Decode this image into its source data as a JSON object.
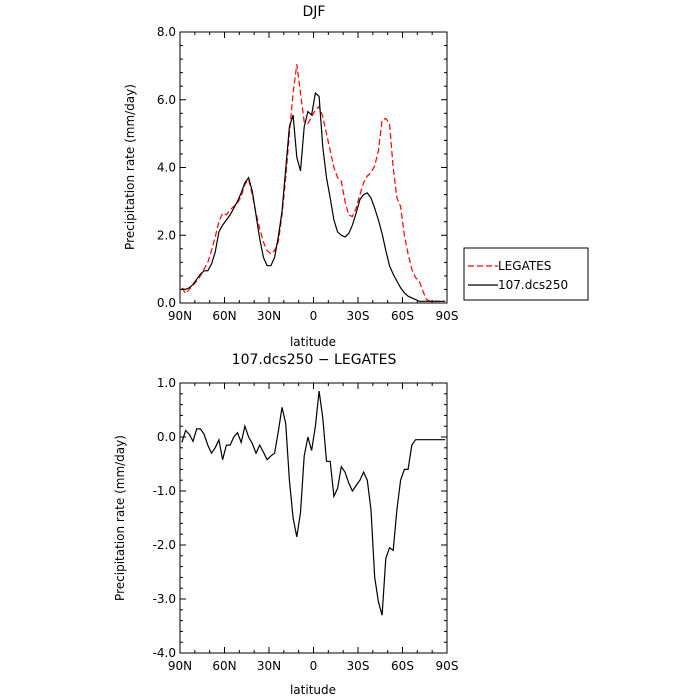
{
  "chart_data": [
    {
      "type": "line",
      "title": "DJF",
      "xlabel": "latitude",
      "ylabel": "Precipitation rate (mm/day)",
      "xlim": [
        -90,
        90
      ],
      "ylim": [
        0,
        8
      ],
      "xticks": [
        "90N",
        "60N",
        "30N",
        "0",
        "30S",
        "60S",
        "90S"
      ],
      "yticks": [
        "0.0",
        "2.0",
        "4.0",
        "6.0",
        "8.0"
      ],
      "legend_position": "right",
      "x": [
        -88.75,
        -86.25,
        -83.75,
        -81.25,
        -78.75,
        -76.25,
        -73.75,
        -71.25,
        -68.75,
        -66.25,
        -63.75,
        -61.25,
        -58.75,
        -56.25,
        -53.75,
        -51.25,
        -48.75,
        -46.25,
        -43.75,
        -41.25,
        -38.75,
        -36.25,
        -33.75,
        -31.25,
        -28.75,
        -26.25,
        -23.75,
        -21.25,
        -18.75,
        -16.25,
        -13.75,
        -11.25,
        -8.75,
        -6.25,
        -3.75,
        -1.25,
        1.25,
        3.75,
        6.25,
        8.75,
        11.25,
        13.75,
        16.25,
        18.75,
        21.25,
        23.75,
        26.25,
        28.75,
        31.25,
        33.75,
        36.25,
        38.75,
        41.25,
        43.75,
        46.25,
        48.75,
        51.25,
        53.75,
        56.25,
        58.75,
        61.25,
        63.75,
        66.25,
        68.75,
        71.25,
        73.75,
        76.25,
        78.75,
        81.25,
        83.75,
        86.25,
        88.75
      ],
      "series": [
        {
          "name": "LEGATES",
          "color": "#ff0000",
          "dash": "dashed",
          "values": [
            0.45,
            0.28,
            0.4,
            0.52,
            0.65,
            0.8,
            1.0,
            1.2,
            1.55,
            1.95,
            2.4,
            2.65,
            2.6,
            2.75,
            2.85,
            2.95,
            3.15,
            3.5,
            3.65,
            3.2,
            2.65,
            2.2,
            1.8,
            1.55,
            1.45,
            1.55,
            1.8,
            2.6,
            3.7,
            5.0,
            6.2,
            7.05,
            6.2,
            5.35,
            5.3,
            5.5,
            5.7,
            5.8,
            5.5,
            5.0,
            4.5,
            4.0,
            3.7,
            3.6,
            3.0,
            2.6,
            2.55,
            2.8,
            3.2,
            3.55,
            3.75,
            3.85,
            4.05,
            4.5,
            5.4,
            5.45,
            5.3,
            4.0,
            3.1,
            2.85,
            2.0,
            1.45,
            1.0,
            0.75,
            0.65,
            0.35,
            0.1,
            0.05,
            0.05,
            0.05,
            0.05,
            0.05
          ]
        },
        {
          "name": "107.dcs250",
          "color": "#000000",
          "dash": "solid",
          "values": [
            0.42,
            0.4,
            0.45,
            0.55,
            0.7,
            0.85,
            0.95,
            0.95,
            1.15,
            1.5,
            2.1,
            2.3,
            2.45,
            2.6,
            2.8,
            3.0,
            3.25,
            3.55,
            3.7,
            3.3,
            2.6,
            1.9,
            1.35,
            1.1,
            1.1,
            1.35,
            1.95,
            2.7,
            3.95,
            5.2,
            5.55,
            4.3,
            3.9,
            5.2,
            5.65,
            5.55,
            6.2,
            6.1,
            4.6,
            3.7,
            3.1,
            2.45,
            2.1,
            2.0,
            1.95,
            2.05,
            2.3,
            2.65,
            3.05,
            3.2,
            3.25,
            3.1,
            2.8,
            2.45,
            2.05,
            1.55,
            1.1,
            0.85,
            0.65,
            0.45,
            0.3,
            0.2,
            0.15,
            0.1,
            0.05,
            0.05,
            0.05,
            0.05,
            0.05,
            0.05,
            0.05,
            0.05
          ]
        }
      ]
    },
    {
      "type": "line",
      "title": "107.dcs250 − LEGATES",
      "xlabel": "latitude",
      "ylabel": "Precipitation rate (mm/day)",
      "xlim": [
        -90,
        90
      ],
      "ylim": [
        -4,
        1
      ],
      "xticks": [
        "90N",
        "60N",
        "30N",
        "0",
        "30S",
        "60S",
        "90S"
      ],
      "yticks": [
        "-4.0",
        "-3.0",
        "-2.0",
        "-1.0",
        "0.0",
        "1.0"
      ],
      "x": [
        -88.75,
        -86.25,
        -83.75,
        -81.25,
        -78.75,
        -76.25,
        -73.75,
        -71.25,
        -68.75,
        -66.25,
        -63.75,
        -61.25,
        -58.75,
        -56.25,
        -53.75,
        -51.25,
        -48.75,
        -46.25,
        -43.75,
        -41.25,
        -38.75,
        -36.25,
        -33.75,
        -31.25,
        -28.75,
        -26.25,
        -23.75,
        -21.25,
        -18.75,
        -16.25,
        -13.75,
        -11.25,
        -8.75,
        -6.25,
        -3.75,
        -1.25,
        1.25,
        3.75,
        6.25,
        8.75,
        11.25,
        13.75,
        16.25,
        18.75,
        21.25,
        23.75,
        26.25,
        28.75,
        31.25,
        33.75,
        36.25,
        38.75,
        41.25,
        43.75,
        46.25,
        48.75,
        51.25,
        53.75,
        56.25,
        58.75,
        61.25,
        63.75,
        66.25,
        68.75,
        71.25,
        73.75,
        76.25,
        78.75,
        81.25,
        83.75,
        86.25,
        88.75
      ],
      "series": [
        {
          "color": "#000000",
          "dash": "solid",
          "values": [
            -0.1,
            0.12,
            0.05,
            -0.08,
            0.15,
            0.15,
            0.05,
            -0.15,
            -0.3,
            -0.2,
            -0.05,
            -0.42,
            -0.15,
            -0.15,
            0.0,
            0.08,
            -0.1,
            0.2,
            0.0,
            -0.12,
            -0.3,
            -0.15,
            -0.28,
            -0.42,
            -0.35,
            -0.3,
            0.1,
            0.55,
            0.25,
            -0.8,
            -1.5,
            -1.85,
            -1.4,
            -0.35,
            0.0,
            -0.25,
            0.2,
            0.85,
            0.35,
            -0.45,
            -0.45,
            -1.1,
            -0.95,
            -0.55,
            -0.65,
            -0.85,
            -1.0,
            -0.9,
            -0.8,
            -0.65,
            -0.8,
            -1.35,
            -2.6,
            -3.05,
            -3.3,
            -2.25,
            -2.05,
            -2.1,
            -1.35,
            -0.8,
            -0.6,
            -0.6,
            -0.15,
            -0.05,
            -0.05,
            -0.05,
            -0.05,
            -0.05,
            -0.05,
            -0.05,
            -0.05,
            -0.05
          ]
        }
      ]
    }
  ]
}
